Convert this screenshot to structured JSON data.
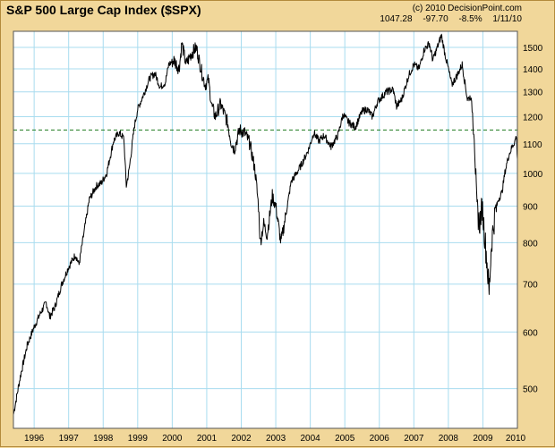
{
  "header": {
    "title": "S&P 500 Large Cap Index ($SPX)",
    "credit": "(c) 2010 DecisionPoint.com",
    "readout": {
      "last": "1047.28",
      "change": "-97.70",
      "pct": "-8.5%",
      "date": "1/11/10"
    }
  },
  "colors": {
    "frame": "#f1d79a",
    "plot_bg": "#ffffff",
    "grid": "#a8dcef",
    "price_line": "#000000",
    "reference_line": "#1e7a1e"
  },
  "chart_data": {
    "type": "line",
    "title": "S&P 500 Large Cap Index ($SPX)",
    "xlabel": "",
    "ylabel": "",
    "xlim": [
      1995.4,
      2010.0
    ],
    "ylim": [
      440,
      1580
    ],
    "y_scale": "log",
    "grid": true,
    "y_axis_position": "right",
    "x_ticks": [
      "1996",
      "1997",
      "1998",
      "1999",
      "2000",
      "2001",
      "2002",
      "2003",
      "2004",
      "2005",
      "2006",
      "2007",
      "2008",
      "2009",
      "2010"
    ],
    "y_ticks": [
      500,
      600,
      700,
      800,
      900,
      1000,
      1100,
      1200,
      1300,
      1400,
      1500
    ],
    "reference_line": {
      "y": 1150,
      "style": "dashed"
    },
    "series": [
      {
        "values": [
          [
            1995.4,
            460
          ],
          [
            1995.6,
            520
          ],
          [
            1995.8,
            575
          ],
          [
            1996.0,
            610
          ],
          [
            1996.2,
            640
          ],
          [
            1996.35,
            660
          ],
          [
            1996.45,
            630
          ],
          [
            1996.6,
            650
          ],
          [
            1996.8,
            700
          ],
          [
            1997.0,
            740
          ],
          [
            1997.2,
            770
          ],
          [
            1997.3,
            745
          ],
          [
            1997.45,
            830
          ],
          [
            1997.6,
            920
          ],
          [
            1997.8,
            960
          ],
          [
            1997.95,
            970
          ],
          [
            1998.1,
            1000
          ],
          [
            1998.3,
            1110
          ],
          [
            1998.45,
            1140
          ],
          [
            1998.6,
            1120
          ],
          [
            1998.67,
            960
          ],
          [
            1998.75,
            1010
          ],
          [
            1998.9,
            1160
          ],
          [
            1999.0,
            1230
          ],
          [
            1999.2,
            1300
          ],
          [
            1999.35,
            1360
          ],
          [
            1999.5,
            1380
          ],
          [
            1999.65,
            1320
          ],
          [
            1999.8,
            1340
          ],
          [
            1999.9,
            1420
          ],
          [
            2000.05,
            1440
          ],
          [
            2000.2,
            1400
          ],
          [
            2000.28,
            1520
          ],
          [
            2000.4,
            1420
          ],
          [
            2000.55,
            1470
          ],
          [
            2000.7,
            1500
          ],
          [
            2000.85,
            1390
          ],
          [
            2000.95,
            1330
          ],
          [
            2001.05,
            1350
          ],
          [
            2001.15,
            1240
          ],
          [
            2001.25,
            1200
          ],
          [
            2001.4,
            1250
          ],
          [
            2001.6,
            1180
          ],
          [
            2001.7,
            1110
          ],
          [
            2001.8,
            1080
          ],
          [
            2001.95,
            1150
          ],
          [
            2002.1,
            1140
          ],
          [
            2002.25,
            1100
          ],
          [
            2002.4,
            1010
          ],
          [
            2002.5,
            900
          ],
          [
            2002.55,
            800
          ],
          [
            2002.65,
            850
          ],
          [
            2002.75,
            820
          ],
          [
            2002.9,
            930
          ],
          [
            2003.0,
            900
          ],
          [
            2003.15,
            800
          ],
          [
            2003.3,
            880
          ],
          [
            2003.45,
            975
          ],
          [
            2003.6,
            1000
          ],
          [
            2003.75,
            1030
          ],
          [
            2003.95,
            1080
          ],
          [
            2004.1,
            1140
          ],
          [
            2004.25,
            1110
          ],
          [
            2004.4,
            1130
          ],
          [
            2004.6,
            1090
          ],
          [
            2004.8,
            1130
          ],
          [
            2004.95,
            1210
          ],
          [
            2005.1,
            1180
          ],
          [
            2005.3,
            1160
          ],
          [
            2005.5,
            1220
          ],
          [
            2005.65,
            1230
          ],
          [
            2005.8,
            1200
          ],
          [
            2005.95,
            1260
          ],
          [
            2006.2,
            1300
          ],
          [
            2006.4,
            1310
          ],
          [
            2006.5,
            1240
          ],
          [
            2006.65,
            1270
          ],
          [
            2006.85,
            1370
          ],
          [
            2007.0,
            1420
          ],
          [
            2007.15,
            1400
          ],
          [
            2007.3,
            1490
          ],
          [
            2007.45,
            1520
          ],
          [
            2007.55,
            1440
          ],
          [
            2007.7,
            1510
          ],
          [
            2007.8,
            1560
          ],
          [
            2007.9,
            1470
          ],
          [
            2008.0,
            1400
          ],
          [
            2008.1,
            1330
          ],
          [
            2008.25,
            1370
          ],
          [
            2008.4,
            1420
          ],
          [
            2008.55,
            1270
          ],
          [
            2008.65,
            1280
          ],
          [
            2008.75,
            1150
          ],
          [
            2008.82,
            900
          ],
          [
            2008.9,
            850
          ],
          [
            2008.98,
            900
          ],
          [
            2009.05,
            820
          ],
          [
            2009.12,
            750
          ],
          [
            2009.18,
            680
          ],
          [
            2009.25,
            800
          ],
          [
            2009.35,
            880
          ],
          [
            2009.45,
            920
          ],
          [
            2009.55,
            940
          ],
          [
            2009.65,
            1010
          ],
          [
            2009.75,
            1060
          ],
          [
            2009.85,
            1090
          ],
          [
            2009.93,
            1110
          ],
          [
            2009.97,
            1130
          ],
          [
            2010.0,
            1047
          ]
        ]
      }
    ]
  }
}
